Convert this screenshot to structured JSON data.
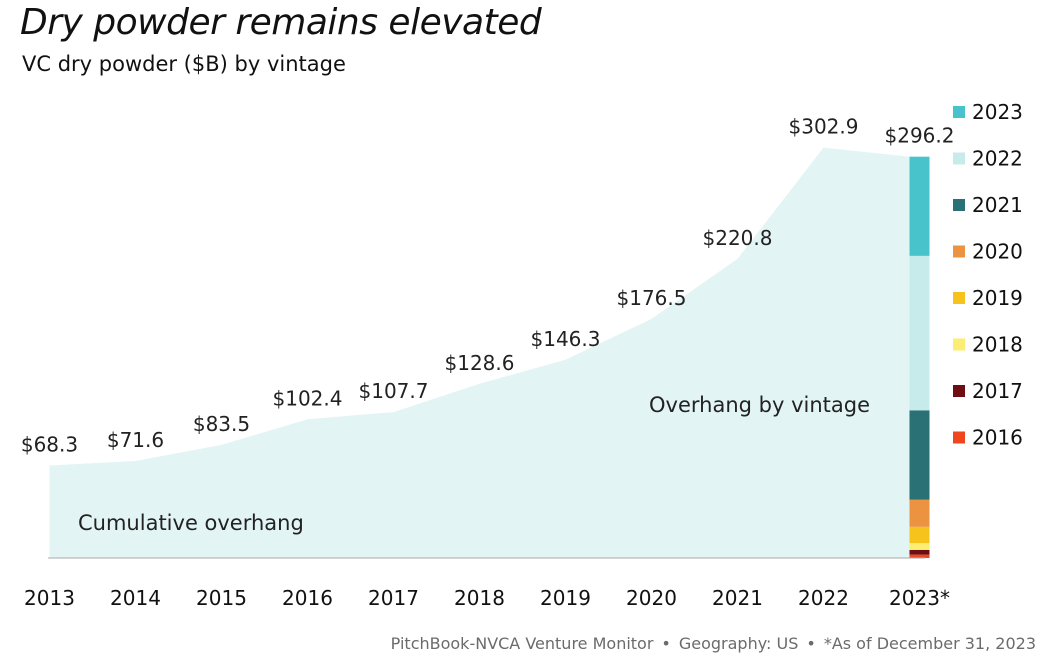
{
  "title": "Dry powder remains elevated",
  "subtitle": "VC dry powder ($B) by vintage",
  "footer": {
    "source": "PitchBook-NVCA Venture Monitor",
    "geography": "Geography: US",
    "note": "*As of December 31, 2023"
  },
  "chart_data": {
    "type": "area",
    "x": [
      "2013",
      "2014",
      "2015",
      "2016",
      "2017",
      "2018",
      "2019",
      "2020",
      "2021",
      "2022",
      "2023*"
    ],
    "values": [
      68.3,
      71.6,
      83.5,
      102.4,
      107.7,
      128.6,
      146.3,
      176.5,
      220.8,
      302.9,
      296.2
    ],
    "data_labels": [
      "$68.3",
      "$71.6",
      "$83.5",
      "$102.4",
      "$107.7",
      "$128.6",
      "$146.3",
      "$176.5",
      "$220.8",
      "$302.9",
      "$296.2"
    ],
    "area_label": "Cumulative overhang",
    "stack_label": "Overhang by vintage",
    "ylim": [
      0,
      310
    ],
    "grid": false,
    "legend_position": "right",
    "area_color": "#e3f4f4",
    "stacked_bar": {
      "category": "2023*",
      "segments": [
        {
          "name": "2016",
          "value": 2.5,
          "color": "#f0461f"
        },
        {
          "name": "2017",
          "value": 3.5,
          "color": "#6e0e12"
        },
        {
          "name": "2018",
          "value": 5.0,
          "color": "#fbee72"
        },
        {
          "name": "2019",
          "value": 12.0,
          "color": "#f6c31c"
        },
        {
          "name": "2020",
          "value": 20.0,
          "color": "#ec9342"
        },
        {
          "name": "2021",
          "value": 66.0,
          "color": "#2a7175"
        },
        {
          "name": "2022",
          "value": 114.0,
          "color": "#c7ebeb"
        },
        {
          "name": "2023",
          "value": 73.2,
          "color": "#48c3cb"
        }
      ]
    },
    "legend": [
      "2023",
      "2022",
      "2021",
      "2020",
      "2019",
      "2018",
      "2017",
      "2016"
    ]
  }
}
